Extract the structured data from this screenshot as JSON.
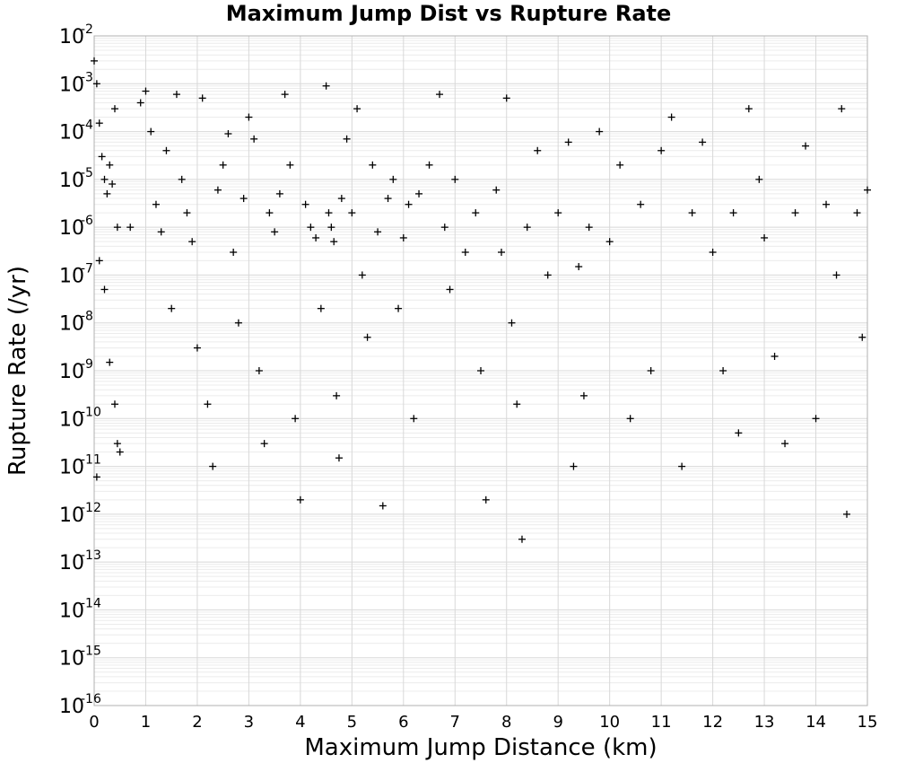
{
  "chart_data": {
    "type": "scatter",
    "title": "Maximum Jump Dist vs Rupture Rate",
    "xlabel": "Maximum Jump Distance (km)",
    "ylabel": "Rupture Rate (/yr)",
    "xlim": [
      0,
      15
    ],
    "ylim": [
      1e-16,
      0.01
    ],
    "y_scale": "log",
    "grid": true,
    "marker": "+",
    "marker_color": "#000000",
    "x_ticks": [
      "0",
      "1",
      "2",
      "3",
      "4",
      "5",
      "6",
      "7",
      "8",
      "9",
      "10",
      "11",
      "12",
      "13",
      "14",
      "15"
    ],
    "y_ticks": [
      {
        "base": "10",
        "exp": "-2"
      },
      {
        "base": "10",
        "exp": "-3"
      },
      {
        "base": "10",
        "exp": "-4"
      },
      {
        "base": "10",
        "exp": "-5"
      },
      {
        "base": "10",
        "exp": "-6"
      },
      {
        "base": "10",
        "exp": "-7"
      },
      {
        "base": "10",
        "exp": "-8"
      },
      {
        "base": "10",
        "exp": "-9"
      },
      {
        "base": "10",
        "exp": "-10"
      },
      {
        "base": "10",
        "exp": "-11"
      },
      {
        "base": "10",
        "exp": "-12"
      },
      {
        "base": "10",
        "exp": "-13"
      },
      {
        "base": "10",
        "exp": "-14"
      },
      {
        "base": "10",
        "exp": "-15"
      },
      {
        "base": "10",
        "exp": "-16"
      }
    ],
    "points": [
      {
        "x": 0.0,
        "y": 0.003
      },
      {
        "x": 0.05,
        "y": 0.001
      },
      {
        "x": 0.1,
        "y": 0.00015
      },
      {
        "x": 0.15,
        "y": 3e-05
      },
      {
        "x": 0.2,
        "y": 1e-05
      },
      {
        "x": 0.25,
        "y": 5e-06
      },
      {
        "x": 0.3,
        "y": 2e-05
      },
      {
        "x": 0.35,
        "y": 8e-06
      },
      {
        "x": 0.4,
        "y": 0.0003
      },
      {
        "x": 0.45,
        "y": 1e-06
      },
      {
        "x": 0.1,
        "y": 2e-07
      },
      {
        "x": 0.2,
        "y": 5e-08
      },
      {
        "x": 0.3,
        "y": 1.5e-09
      },
      {
        "x": 0.4,
        "y": 2e-10
      },
      {
        "x": 0.45,
        "y": 3e-11
      },
      {
        "x": 0.05,
        "y": 6e-12
      },
      {
        "x": 0.5,
        "y": 2e-11
      },
      {
        "x": 0.7,
        "y": 1e-06
      },
      {
        "x": 0.9,
        "y": 0.0004
      },
      {
        "x": 1.0,
        "y": 0.0007
      },
      {
        "x": 1.1,
        "y": 0.0001
      },
      {
        "x": 1.2,
        "y": 3e-06
      },
      {
        "x": 1.3,
        "y": 8e-07
      },
      {
        "x": 1.4,
        "y": 4e-05
      },
      {
        "x": 1.5,
        "y": 2e-08
      },
      {
        "x": 1.6,
        "y": 0.0006
      },
      {
        "x": 1.7,
        "y": 1e-05
      },
      {
        "x": 1.8,
        "y": 2e-06
      },
      {
        "x": 1.9,
        "y": 5e-07
      },
      {
        "x": 2.0,
        "y": 3e-09
      },
      {
        "x": 2.1,
        "y": 0.0005
      },
      {
        "x": 2.2,
        "y": 2e-10
      },
      {
        "x": 2.3,
        "y": 1e-11
      },
      {
        "x": 2.4,
        "y": 6e-06
      },
      {
        "x": 2.5,
        "y": 2e-05
      },
      {
        "x": 2.6,
        "y": 9e-05
      },
      {
        "x": 2.7,
        "y": 3e-07
      },
      {
        "x": 2.8,
        "y": 1e-08
      },
      {
        "x": 2.9,
        "y": 4e-06
      },
      {
        "x": 3.0,
        "y": 0.0002
      },
      {
        "x": 3.1,
        "y": 7e-05
      },
      {
        "x": 3.2,
        "y": 1e-09
      },
      {
        "x": 3.3,
        "y": 3e-11
      },
      {
        "x": 3.4,
        "y": 2e-06
      },
      {
        "x": 3.5,
        "y": 8e-07
      },
      {
        "x": 3.6,
        "y": 5e-06
      },
      {
        "x": 3.7,
        "y": 0.0006
      },
      {
        "x": 3.8,
        "y": 2e-05
      },
      {
        "x": 3.9,
        "y": 1e-10
      },
      {
        "x": 4.0,
        "y": 2e-12
      },
      {
        "x": 4.1,
        "y": 3e-06
      },
      {
        "x": 4.2,
        "y": 1e-06
      },
      {
        "x": 4.3,
        "y": 6e-07
      },
      {
        "x": 4.4,
        "y": 2e-08
      },
      {
        "x": 4.5,
        "y": 0.0009
      },
      {
        "x": 4.55,
        "y": 2e-06
      },
      {
        "x": 4.6,
        "y": 1e-06
      },
      {
        "x": 4.65,
        "y": 5e-07
      },
      {
        "x": 4.7,
        "y": 3e-10
      },
      {
        "x": 4.75,
        "y": 1.5e-11
      },
      {
        "x": 4.8,
        "y": 4e-06
      },
      {
        "x": 4.9,
        "y": 7e-05
      },
      {
        "x": 5.0,
        "y": 2e-06
      },
      {
        "x": 5.1,
        "y": 0.0003
      },
      {
        "x": 5.2,
        "y": 1e-07
      },
      {
        "x": 5.3,
        "y": 5e-09
      },
      {
        "x": 5.4,
        "y": 2e-05
      },
      {
        "x": 5.5,
        "y": 8e-07
      },
      {
        "x": 5.6,
        "y": 1.5e-12
      },
      {
        "x": 5.7,
        "y": 4e-06
      },
      {
        "x": 5.8,
        "y": 1e-05
      },
      {
        "x": 5.9,
        "y": 2e-08
      },
      {
        "x": 6.0,
        "y": 6e-07
      },
      {
        "x": 6.1,
        "y": 3e-06
      },
      {
        "x": 6.2,
        "y": 1e-10
      },
      {
        "x": 6.3,
        "y": 5e-06
      },
      {
        "x": 6.5,
        "y": 2e-05
      },
      {
        "x": 6.7,
        "y": 0.0006
      },
      {
        "x": 6.8,
        "y": 1e-06
      },
      {
        "x": 6.9,
        "y": 5e-08
      },
      {
        "x": 7.0,
        "y": 1e-05
      },
      {
        "x": 7.2,
        "y": 3e-07
      },
      {
        "x": 7.4,
        "y": 2e-06
      },
      {
        "x": 7.5,
        "y": 1e-09
      },
      {
        "x": 7.6,
        "y": 2e-12
      },
      {
        "x": 7.8,
        "y": 6e-06
      },
      {
        "x": 7.9,
        "y": 3e-07
      },
      {
        "x": 8.0,
        "y": 0.0005
      },
      {
        "x": 8.1,
        "y": 1e-08
      },
      {
        "x": 8.2,
        "y": 2e-10
      },
      {
        "x": 8.3,
        "y": 3e-13
      },
      {
        "x": 8.4,
        "y": 1e-06
      },
      {
        "x": 8.6,
        "y": 4e-05
      },
      {
        "x": 8.8,
        "y": 1e-07
      },
      {
        "x": 9.0,
        "y": 2e-06
      },
      {
        "x": 9.2,
        "y": 6e-05
      },
      {
        "x": 9.3,
        "y": 1e-11
      },
      {
        "x": 9.4,
        "y": 1.5e-07
      },
      {
        "x": 9.5,
        "y": 3e-10
      },
      {
        "x": 9.6,
        "y": 1e-06
      },
      {
        "x": 9.8,
        "y": 0.0001
      },
      {
        "x": 10.0,
        "y": 5e-07
      },
      {
        "x": 10.2,
        "y": 2e-05
      },
      {
        "x": 10.4,
        "y": 1e-10
      },
      {
        "x": 10.6,
        "y": 3e-06
      },
      {
        "x": 10.8,
        "y": 1e-09
      },
      {
        "x": 11.0,
        "y": 4e-05
      },
      {
        "x": 11.2,
        "y": 0.0002
      },
      {
        "x": 11.4,
        "y": 1e-11
      },
      {
        "x": 11.6,
        "y": 2e-06
      },
      {
        "x": 11.8,
        "y": 6e-05
      },
      {
        "x": 12.0,
        "y": 3e-07
      },
      {
        "x": 12.2,
        "y": 1e-09
      },
      {
        "x": 12.4,
        "y": 2e-06
      },
      {
        "x": 12.5,
        "y": 5e-11
      },
      {
        "x": 12.7,
        "y": 0.0003
      },
      {
        "x": 12.9,
        "y": 1e-05
      },
      {
        "x": 13.0,
        "y": 6e-07
      },
      {
        "x": 13.2,
        "y": 2e-09
      },
      {
        "x": 13.4,
        "y": 3e-11
      },
      {
        "x": 13.6,
        "y": 2e-06
      },
      {
        "x": 13.8,
        "y": 5e-05
      },
      {
        "x": 14.0,
        "y": 1e-10
      },
      {
        "x": 14.2,
        "y": 3e-06
      },
      {
        "x": 14.4,
        "y": 1e-07
      },
      {
        "x": 14.5,
        "y": 0.0003
      },
      {
        "x": 14.6,
        "y": 1e-12
      },
      {
        "x": 14.8,
        "y": 2e-06
      },
      {
        "x": 14.9,
        "y": 5e-09
      },
      {
        "x": 15.0,
        "y": 6e-06
      }
    ]
  }
}
